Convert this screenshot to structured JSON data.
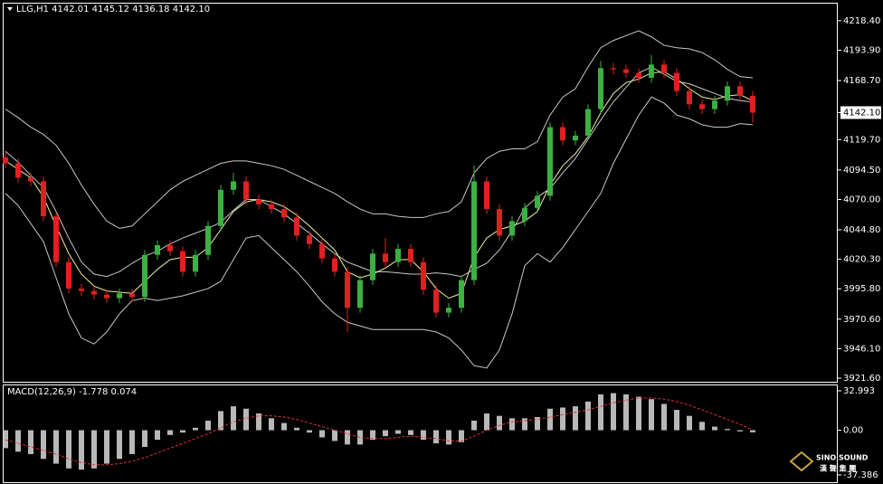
{
  "chart_data": [
    {
      "type": "candlestick",
      "title": "LLG,H1  4142.01 4145.12 4136.18 4142.10",
      "open": [
        4105,
        4100,
        4088,
        4085,
        4056,
        4018,
        3996,
        3994,
        3991,
        3988,
        3992,
        3989,
        4024,
        4032,
        4027,
        4010,
        4024,
        4048,
        4078,
        4085,
        4070,
        4066,
        4062,
        4055,
        4040,
        4033,
        4021,
        4010,
        3980,
        4003,
        4025,
        4018,
        4029,
        4018,
        3995,
        3976,
        3980,
        4003,
        4085,
        4062,
        4040,
        4052,
        4063,
        4073,
        4130,
        4119,
        4123,
        4145,
        4179,
        4178,
        4175,
        4171,
        4182,
        4175,
        4160,
        4149,
        4145,
        4152,
        4164,
        4156
      ],
      "high": [
        4109,
        4104,
        4092,
        4089,
        4060,
        4022,
        4000,
        3998,
        3995,
        3996,
        3996,
        4028,
        4036,
        4036,
        4031,
        4028,
        4052,
        4082,
        4092,
        4089,
        4074,
        4070,
        4066,
        4059,
        4044,
        4037,
        4025,
        4014,
        4007,
        4029,
        4038,
        4033,
        4033,
        4022,
        3999,
        3984,
        4007,
        4098,
        4089,
        4066,
        4056,
        4067,
        4077,
        4134,
        4134,
        4127,
        4149,
        4185,
        4183,
        4182,
        4179,
        4190,
        4186,
        4179,
        4164,
        4153,
        4156,
        4168,
        4168,
        4160
      ],
      "low": [
        4096,
        4084,
        4081,
        4052,
        4014,
        3992,
        3990,
        3987,
        3984,
        3984,
        3985,
        3985,
        4020,
        4023,
        4006,
        4006,
        4020,
        4044,
        4074,
        4066,
        4062,
        4058,
        4051,
        4036,
        4029,
        4017,
        4006,
        3960,
        3976,
        3999,
        4014,
        4014,
        4014,
        3991,
        3972,
        3972,
        3976,
        3999,
        4058,
        4036,
        4036,
        4048,
        4059,
        4069,
        4115,
        4115,
        4119,
        4141,
        4174,
        4171,
        4167,
        4167,
        4171,
        4156,
        4145,
        4141,
        4141,
        4148,
        4152,
        4134
      ],
      "close": [
        4100,
        4088,
        4085,
        4056,
        4018,
        3996,
        3994,
        3991,
        3988,
        3992,
        3989,
        4024,
        4032,
        4027,
        4010,
        4024,
        4048,
        4078,
        4085,
        4070,
        4066,
        4062,
        4055,
        4040,
        4033,
        4021,
        4010,
        3980,
        4003,
        4025,
        4018,
        4029,
        4018,
        3995,
        3976,
        3980,
        4003,
        4085,
        4062,
        4040,
        4052,
        4063,
        4073,
        4130,
        4119,
        4123,
        4145,
        4179,
        4178,
        4175,
        4171,
        4182,
        4175,
        4160,
        4149,
        4145,
        4152,
        4164,
        4156,
        4142.1
      ],
      "up_color": "#3cb043",
      "down_color": "#e02020",
      "lines": [
        {
          "color": "#c8c8c8",
          "values": [
            4145,
            4138,
            4130,
            4124,
            4115,
            4100,
            4082,
            4066,
            4052,
            4046,
            4048,
            4058,
            4068,
            4078,
            4085,
            4090,
            4095,
            4100,
            4102,
            4102,
            4100,
            4098,
            4095,
            4090,
            4085,
            4080,
            4075,
            4068,
            4062,
            4058,
            4058,
            4056,
            4055,
            4055,
            4058,
            4060,
            4068,
            4092,
            4104,
            4110,
            4112,
            4112,
            4118,
            4140,
            4155,
            4162,
            4180,
            4196,
            4202,
            4206,
            4210,
            4205,
            4198,
            4196,
            4195,
            4192,
            4186,
            4178,
            4172,
            4171
          ]
        },
        {
          "color": "#c8c8c8",
          "values": [
            4110,
            4101,
            4090,
            4080,
            4060,
            4038,
            4018,
            4008,
            4006,
            4010,
            4017,
            4023,
            4027,
            4033,
            4038,
            4042,
            4046,
            4051,
            4061,
            4070,
            4070,
            4064,
            4058,
            4050,
            4042,
            4033,
            4025,
            4018,
            4014,
            4010,
            4010,
            4009,
            4008,
            4008,
            4009,
            4008,
            4006,
            4012,
            4017,
            4028,
            4044,
            4063,
            4072,
            4079,
            4092,
            4104,
            4120,
            4136,
            4151,
            4163,
            4175,
            4180,
            4174,
            4168,
            4166,
            4162,
            4158,
            4154,
            4152,
            4151
          ]
        },
        {
          "color": "#c8c8c8",
          "values": [
            4075,
            4065,
            4050,
            4035,
            4005,
            3975,
            3955,
            3950,
            3960,
            3975,
            3986,
            3988,
            3986,
            3988,
            3990,
            3993,
            3996,
            4002,
            4020,
            4038,
            4040,
            4030,
            4020,
            4010,
            3998,
            3985,
            3975,
            3968,
            3965,
            3962,
            3962,
            3962,
            3962,
            3962,
            3960,
            3955,
            3945,
            3932,
            3930,
            3945,
            3975,
            4015,
            4025,
            4018,
            4030,
            4045,
            4060,
            4075,
            4100,
            4120,
            4140,
            4155,
            4150,
            4140,
            4137,
            4132,
            4130,
            4130,
            4133,
            4132
          ]
        },
        {
          "color": "#f0f0a0",
          "values": [
            4102,
            4095,
            4088,
            4072,
            4048,
            4025,
            4008,
            3998,
            3994,
            3993,
            3992,
            4002,
            4012,
            4020,
            4022,
            4022,
            4030,
            4045,
            4060,
            4068,
            4070,
            4068,
            4064,
            4057,
            4048,
            4038,
            4028,
            4010,
            4005,
            4008,
            4013,
            4020,
            4020,
            4010,
            3996,
            3988,
            3992,
            4022,
            4038,
            4045,
            4048,
            4052,
            4060,
            4082,
            4098,
            4108,
            4122,
            4142,
            4158,
            4167,
            4170,
            4175,
            4176,
            4170,
            4162,
            4155,
            4153,
            4156,
            4157,
            4152
          ]
        }
      ],
      "ylim": [
        3918.6,
        4232.6
      ],
      "yticks": [
        {
          "value": 4218.4,
          "label": "4218.40"
        },
        {
          "value": 4193.9,
          "label": "4193.90"
        },
        {
          "value": 4168.7,
          "label": "4168.70"
        },
        {
          "value": 4119.7,
          "label": "4119.70"
        },
        {
          "value": 4094.5,
          "label": "4094.50"
        },
        {
          "value": 4070,
          "label": "4070.00"
        },
        {
          "value": 4044.8,
          "label": "4044.80"
        },
        {
          "value": 4020.3,
          "label": "4020.30"
        },
        {
          "value": 3995.8,
          "label": "3995.80"
        },
        {
          "value": 3970.6,
          "label": "3970.60"
        },
        {
          "value": 3946.1,
          "label": "3946.10"
        },
        {
          "value": 3921.6,
          "label": "3921.60"
        }
      ],
      "last_price": {
        "value": 4142.1,
        "label": "4142.10"
      }
    },
    {
      "type": "macd",
      "title": "MACD(12,26,9) -1.778 0.074",
      "values": [
        -15,
        -18,
        -20,
        -24,
        -28,
        -32,
        -33,
        -32,
        -28,
        -24,
        -20,
        -14,
        -8,
        -4,
        -2,
        2,
        8,
        16,
        20,
        18,
        14,
        10,
        6,
        2,
        -2,
        -6,
        -9,
        -12,
        -12,
        -8,
        -5,
        -3,
        -4,
        -8,
        -11,
        -12,
        -10,
        8,
        14,
        12,
        10,
        10,
        11,
        18,
        19,
        20,
        24,
        30,
        31,
        30,
        28,
        26,
        22,
        17,
        12,
        7,
        3,
        1,
        -1,
        -1.778
      ],
      "color": "#d8d8d8",
      "signal": {
        "color": "#e03030",
        "values": [
          -8,
          -11,
          -14,
          -17,
          -20,
          -24,
          -27,
          -29,
          -29,
          -28,
          -26,
          -23,
          -19,
          -15,
          -11,
          -7,
          -3,
          2,
          7,
          10,
          12,
          12,
          11,
          9,
          6,
          3,
          0,
          -3,
          -6,
          -7,
          -7,
          -6,
          -5,
          -6,
          -7,
          -9,
          -9,
          -5,
          0,
          4,
          7,
          8,
          9,
          11,
          13,
          15,
          17,
          20,
          23,
          25,
          27,
          27,
          26,
          24,
          21,
          17,
          13,
          9,
          5,
          0.074
        ]
      },
      "ylim": [
        -43.5,
        37.5
      ],
      "yticks": [
        32.993,
        {
          "value": 0,
          "label": "0.00"
        },
        -37.386
      ]
    }
  ],
  "logo": {
    "name": "SINO SOUND",
    "subtitle": "漢 聲 集 團"
  }
}
